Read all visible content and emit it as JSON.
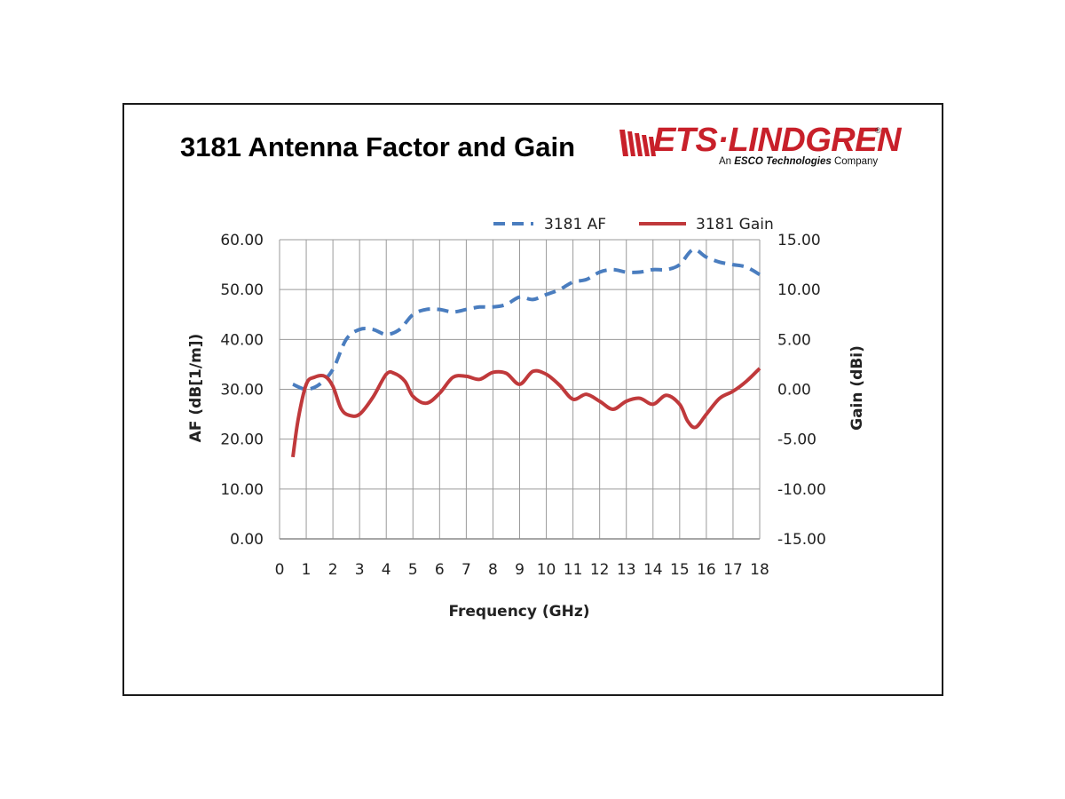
{
  "page": {
    "title": "3181 Antenna Factor and Gain"
  },
  "logo": {
    "main_text": "ETS·LINDGREN",
    "registered": "®",
    "sub_prefix": "An ",
    "sub_bold": "ESCO Technologies",
    "sub_suffix": " Company",
    "brand_color": "#c8202a"
  },
  "chart_data": {
    "type": "line",
    "xlabel": "Frequency (GHz)",
    "ylabel_left": "AF (dB[1/m])",
    "ylabel_right": "Gain (dBi)",
    "xlim": [
      0,
      18
    ],
    "ylim_left": [
      0,
      60
    ],
    "ylim_right": [
      -15,
      15
    ],
    "x_ticks": [
      "0",
      "1",
      "2",
      "3",
      "4",
      "5",
      "6",
      "7",
      "8",
      "9",
      "10",
      "11",
      "12",
      "13",
      "14",
      "15",
      "16",
      "17",
      "18"
    ],
    "y_left_ticks": [
      "0.00",
      "10.00",
      "20.00",
      "30.00",
      "40.00",
      "50.00",
      "60.00"
    ],
    "y_right_ticks": [
      "-15.00",
      "-10.00",
      "-5.00",
      "0.00",
      "5.00",
      "10.00",
      "15.00"
    ],
    "grid": true,
    "legend_position": "top-right",
    "series": [
      {
        "name": "3181 AF",
        "axis": "left",
        "style": "dashed",
        "color": "#4a7dbf",
        "x": [
          0.5,
          1.0,
          1.5,
          2.0,
          2.5,
          3.0,
          3.5,
          4.0,
          4.5,
          5.0,
          5.5,
          6.0,
          6.5,
          7.0,
          7.5,
          8.0,
          8.5,
          9.0,
          9.5,
          10.0,
          10.5,
          11.0,
          11.5,
          12.0,
          12.5,
          13.0,
          13.5,
          14.0,
          14.5,
          15.0,
          15.5,
          16.0,
          16.5,
          17.0,
          17.5,
          18.0
        ],
        "values": [
          31,
          30,
          31,
          34,
          40,
          42,
          42,
          41,
          42,
          45,
          46,
          46,
          45.5,
          46,
          46.5,
          46.5,
          47,
          48.5,
          48,
          49,
          50,
          51.5,
          52,
          53.5,
          54,
          53.5,
          53.5,
          54,
          54,
          55,
          58,
          56.5,
          55.5,
          55,
          54.5,
          53
        ]
      },
      {
        "name": "3181 Gain",
        "axis": "right",
        "style": "solid",
        "color": "#c0393b",
        "x": [
          0.5,
          0.7,
          1.0,
          1.3,
          1.7,
          2.0,
          2.3,
          2.6,
          3.0,
          3.5,
          4.0,
          4.3,
          4.7,
          5.0,
          5.5,
          6.0,
          6.5,
          7.0,
          7.5,
          8.0,
          8.5,
          9.0,
          9.5,
          10.0,
          10.5,
          11.0,
          11.5,
          12.0,
          12.5,
          13.0,
          13.5,
          14.0,
          14.5,
          15.0,
          15.3,
          15.6,
          16.0,
          16.5,
          17.0,
          17.5,
          18.0
        ],
        "values": [
          -6.8,
          -3.0,
          0.5,
          1.2,
          1.3,
          0.3,
          -1.9,
          -2.6,
          -2.5,
          -0.8,
          1.5,
          1.6,
          0.8,
          -0.7,
          -1.4,
          -0.4,
          1.2,
          1.3,
          1.0,
          1.7,
          1.6,
          0.5,
          1.8,
          1.5,
          0.4,
          -1.0,
          -0.5,
          -1.2,
          -2.0,
          -1.2,
          -0.9,
          -1.5,
          -0.6,
          -1.5,
          -3.2,
          -3.8,
          -2.5,
          -0.9,
          -0.2,
          0.8,
          2.1
        ]
      }
    ]
  }
}
